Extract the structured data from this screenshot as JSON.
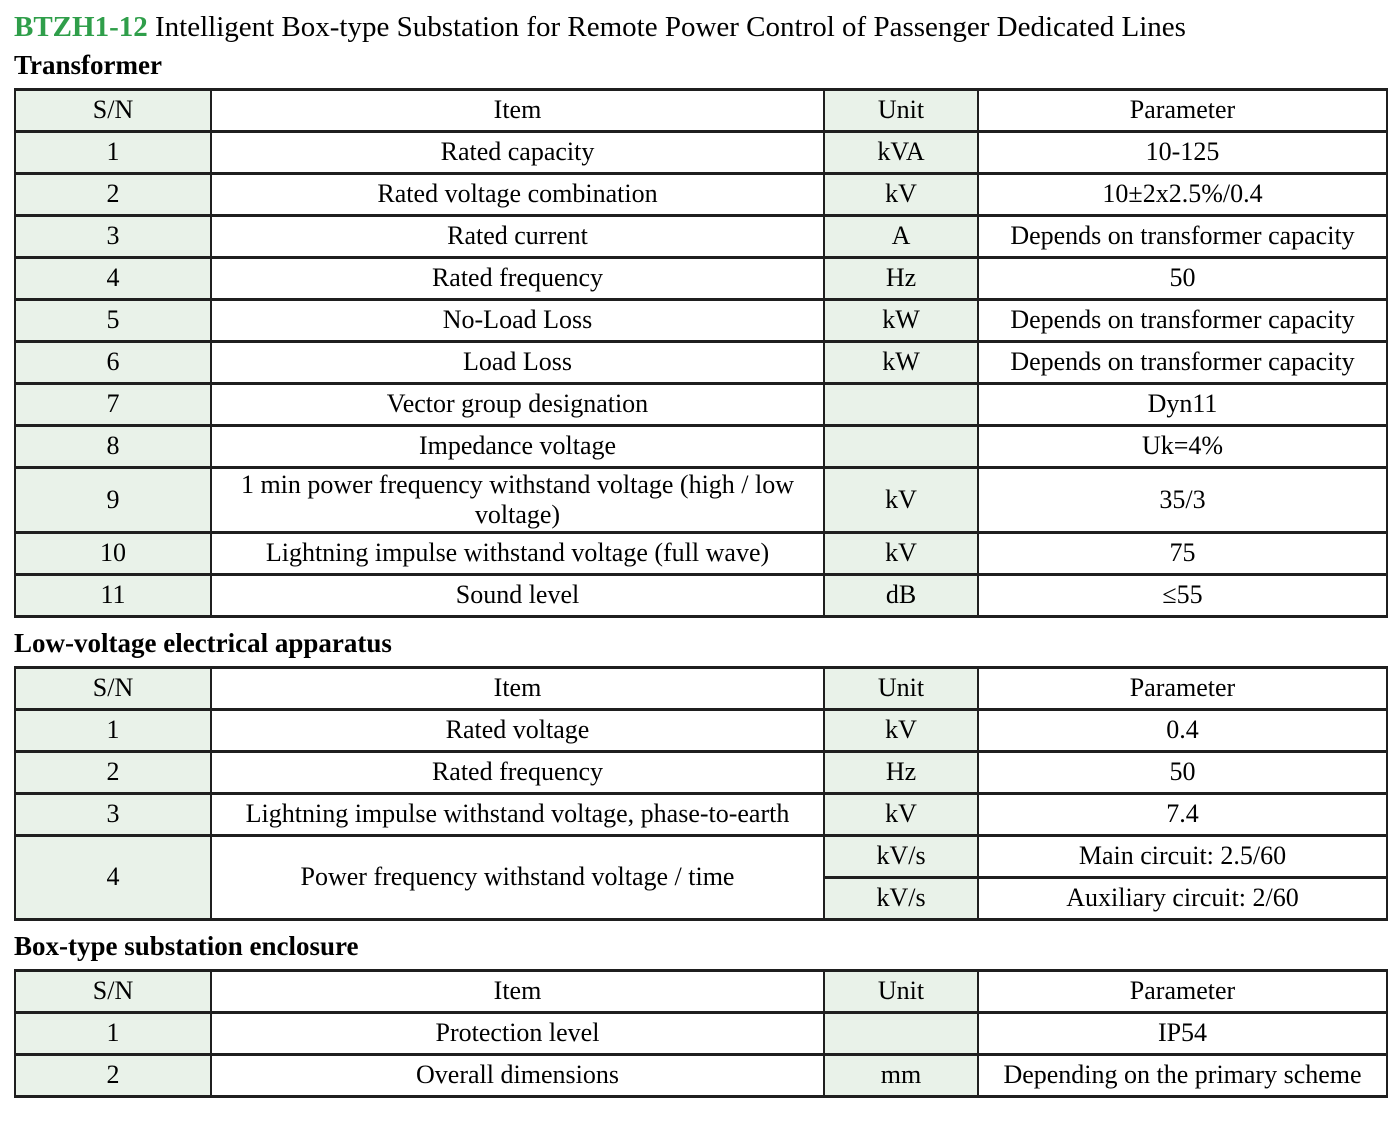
{
  "colors": {
    "accent_green": "#2f9e4a",
    "cell_green": "#e9f2e9",
    "border": "#1f1f1f"
  },
  "title": {
    "code": "BTZH1-12",
    "text": " Intelligent Box-type Substation for Remote Power Control of Passenger Dedicated Lines"
  },
  "sections": [
    {
      "heading": "Transformer",
      "table": {
        "columns": [
          "S/N",
          "Item",
          "Unit",
          "Parameter"
        ],
        "rows": [
          [
            {
              "text": "1",
              "col": 0
            },
            {
              "text": "Rated capacity",
              "col": 1
            },
            {
              "text": "kVA",
              "col": 2
            },
            {
              "text": "10-125",
              "col": 3
            }
          ],
          [
            {
              "text": "2",
              "col": 0
            },
            {
              "text": "Rated voltage combination",
              "col": 1
            },
            {
              "text": "kV",
              "col": 2
            },
            {
              "text": "10±2x2.5%/0.4",
              "col": 3
            }
          ],
          [
            {
              "text": "3",
              "col": 0
            },
            {
              "text": "Rated current",
              "col": 1
            },
            {
              "text": "A",
              "col": 2
            },
            {
              "text": "Depends on transformer capacity",
              "col": 3
            }
          ],
          [
            {
              "text": "4",
              "col": 0
            },
            {
              "text": "Rated frequency",
              "col": 1
            },
            {
              "text": "Hz",
              "col": 2
            },
            {
              "text": "50",
              "col": 3
            }
          ],
          [
            {
              "text": "5",
              "col": 0
            },
            {
              "text": "No-Load Loss",
              "col": 1
            },
            {
              "text": "kW",
              "col": 2
            },
            {
              "text": "Depends on transformer capacity",
              "col": 3
            }
          ],
          [
            {
              "text": "6",
              "col": 0
            },
            {
              "text": "Load Loss",
              "col": 1
            },
            {
              "text": "kW",
              "col": 2
            },
            {
              "text": "Depends on transformer capacity",
              "col": 3
            }
          ],
          [
            {
              "text": "7",
              "col": 0
            },
            {
              "text": "Vector group designation",
              "col": 1
            },
            {
              "text": "",
              "col": 2
            },
            {
              "text": "Dyn11",
              "col": 3
            }
          ],
          [
            {
              "text": "8",
              "col": 0
            },
            {
              "text": "Impedance voltage",
              "col": 1
            },
            {
              "text": "",
              "col": 2
            },
            {
              "text": "Uk=4%",
              "col": 3
            }
          ],
          [
            {
              "text": "9",
              "col": 0
            },
            {
              "text": "1 min power frequency withstand voltage (high / low voltage)",
              "col": 1
            },
            {
              "text": "kV",
              "col": 2
            },
            {
              "text": "35/3",
              "col": 3
            }
          ],
          [
            {
              "text": "10",
              "col": 0
            },
            {
              "text": "Lightning impulse withstand voltage (full wave)",
              "col": 1
            },
            {
              "text": "kV",
              "col": 2
            },
            {
              "text": "75",
              "col": 3
            }
          ],
          [
            {
              "text": "11",
              "col": 0
            },
            {
              "text": "Sound level",
              "col": 1
            },
            {
              "text": "dB",
              "col": 2
            },
            {
              "text": "≤55",
              "col": 3
            }
          ]
        ]
      }
    },
    {
      "heading": "Low-voltage electrical apparatus",
      "table": {
        "columns": [
          "S/N",
          "Item",
          "Unit",
          "Parameter"
        ],
        "rows": [
          [
            {
              "text": "1",
              "col": 0
            },
            {
              "text": "Rated voltage",
              "col": 1
            },
            {
              "text": "kV",
              "col": 2
            },
            {
              "text": "0.4",
              "col": 3
            }
          ],
          [
            {
              "text": "2",
              "col": 0
            },
            {
              "text": "Rated frequency",
              "col": 1
            },
            {
              "text": "Hz",
              "col": 2
            },
            {
              "text": "50",
              "col": 3
            }
          ],
          [
            {
              "text": "3",
              "col": 0
            },
            {
              "text": "Lightning impulse withstand voltage, phase-to-earth",
              "col": 1
            },
            {
              "text": "kV",
              "col": 2
            },
            {
              "text": "7.4",
              "col": 3
            }
          ],
          [
            {
              "text": "4",
              "col": 0,
              "rowspan": 2
            },
            {
              "text": "Power frequency withstand voltage / time",
              "col": 1,
              "rowspan": 2
            },
            {
              "text": "kV/s",
              "col": 2
            },
            {
              "text": "Main circuit: 2.5/60",
              "col": 3
            }
          ],
          [
            {
              "text": "kV/s",
              "col": 2
            },
            {
              "text": "Auxiliary circuit: 2/60",
              "col": 3
            }
          ]
        ]
      }
    },
    {
      "heading": "Box-type substation enclosure",
      "table": {
        "columns": [
          "S/N",
          "Item",
          "Unit",
          "Parameter"
        ],
        "rows": [
          [
            {
              "text": "1",
              "col": 0
            },
            {
              "text": "Protection level",
              "col": 1
            },
            {
              "text": "",
              "col": 2
            },
            {
              "text": "IP54",
              "col": 3
            }
          ],
          [
            {
              "text": "2",
              "col": 0
            },
            {
              "text": "Overall dimensions",
              "col": 1
            },
            {
              "text": "mm",
              "col": 2
            },
            {
              "text": "Depending on the primary scheme",
              "col": 3
            }
          ]
        ]
      }
    }
  ]
}
